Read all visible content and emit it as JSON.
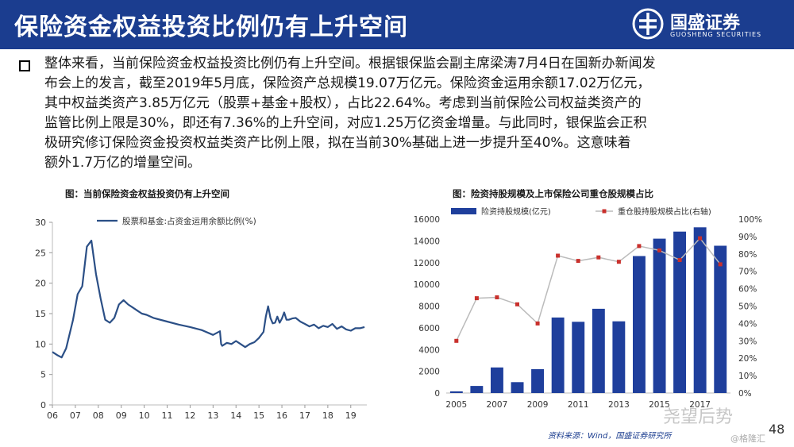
{
  "header": {
    "title": "保险资金权益投资比例仍有上升空间"
  },
  "logo": {
    "name_cn": "国盛证券",
    "name_en": "GUOSHENG SECURITIES"
  },
  "paragraph": {
    "lines": [
      "整体来看，当前保险资金权益投资比例仍有上升空间。根据银保监会副主席梁涛7月4日在国新办新闻发",
      "布会上的发言，截至2019年5月底，保险资产总规模19.07万亿元。保险资金运用余额17.02万亿元，",
      "其中权益类资产3.85万亿元（股票+基金+股权），占比22.64%。考虑到当前保险公司权益类资产的",
      "监管比例上限是30%，即还有7.36%的上升空间，对应1.25万亿资金增量。与此同时，银保监会正积",
      "极研究修订保险资金投资权益类资产比例上限，拟在当前30%基础上进一步提升至40%。这意味着",
      "额外1.7万亿的增量空间。"
    ]
  },
  "chart_left": {
    "title": "图：当前保险资金权益投资仍有上升空间"
  },
  "chart_right": {
    "title": "图：险资持股规模及上市保险公司重仓股规模占比"
  },
  "footer": {
    "source": "资料来源：Wind，国盛证券研究所",
    "watermark": "尧望后势",
    "watermark2": "@格隆汇",
    "page": "48"
  },
  "colors": {
    "header_bg": "#1b3d8f",
    "line_color": "#2b4f86",
    "bar_color": "#1f3f9c",
    "ratio_color": "#c9302c",
    "ratio_line": "#bbbbbb"
  },
  "chart_data": [
    {
      "type": "line",
      "title": "图：当前保险资金权益投资仍有上升空间",
      "xlabel": "",
      "ylabel": "",
      "legend": "top-left",
      "xticks": [
        "06",
        "07",
        "08",
        "09",
        "10",
        "11",
        "12",
        "13",
        "14",
        "15",
        "16",
        "17",
        "18",
        "19"
      ],
      "ylim": [
        0,
        30
      ],
      "yticks": [
        0,
        5,
        10,
        15,
        20,
        25,
        30
      ],
      "series": [
        {
          "name": "股票和基金:占资金运用余额比例(%)",
          "x": [
            2006.0,
            2006.2,
            2006.4,
            2006.6,
            2006.9,
            2007.1,
            2007.3,
            2007.5,
            2007.7,
            2007.9,
            2008.1,
            2008.3,
            2008.5,
            2008.7,
            2008.9,
            2009.1,
            2009.3,
            2009.5,
            2009.7,
            2009.9,
            2010.1,
            2010.4,
            2011.0,
            2011.5,
            2012.0,
            2012.5,
            2013.0,
            2013.3,
            2013.35,
            2013.4,
            2013.6,
            2013.8,
            2014.0,
            2014.2,
            2014.4,
            2014.6,
            2014.8,
            2015.0,
            2015.2,
            2015.3,
            2015.4,
            2015.5,
            2015.6,
            2015.7,
            2015.8,
            2015.9,
            2016.0,
            2016.1,
            2016.2,
            2016.3,
            2016.45,
            2016.6,
            2016.8,
            2017.0,
            2017.2,
            2017.4,
            2017.6,
            2017.8,
            2018.0,
            2018.2,
            2018.4,
            2018.6,
            2018.8,
            2019.0,
            2019.2,
            2019.4,
            2019.6
          ],
          "values": [
            8.7,
            8.2,
            7.8,
            9.3,
            14.0,
            18.2,
            19.5,
            26.0,
            27.0,
            21.5,
            17.5,
            14.0,
            13.5,
            14.3,
            16.5,
            17.2,
            16.5,
            16.0,
            15.5,
            15.0,
            14.8,
            14.3,
            13.7,
            13.2,
            12.8,
            12.3,
            11.5,
            12.1,
            10.0,
            9.7,
            10.2,
            10.0,
            10.5,
            10.0,
            9.5,
            10.0,
            10.3,
            11.0,
            12.0,
            14.5,
            16.2,
            14.3,
            13.4,
            13.5,
            14.5,
            13.5,
            14.2,
            15.2,
            14.0,
            14.0,
            14.2,
            14.3,
            13.7,
            13.3,
            12.9,
            13.2,
            12.6,
            13.0,
            12.8,
            13.3,
            12.5,
            12.9,
            12.4,
            12.2,
            12.6,
            12.6,
            12.8
          ]
        }
      ]
    },
    {
      "type": "bar",
      "title": "图：险资持股规模及上市保险公司重仓股规模占比",
      "legend": "top",
      "categories": [
        "2005",
        "2006",
        "2007",
        "2008",
        "2009",
        "2010",
        "2011",
        "2012",
        "2013",
        "2014",
        "2015",
        "2016",
        "2017",
        "2018"
      ],
      "xtick_labels": [
        "2005",
        "2007",
        "2009",
        "2011",
        "2013",
        "2015",
        "2017"
      ],
      "ylim": [
        0,
        16000
      ],
      "yticks": [
        0,
        2000,
        4000,
        6000,
        8000,
        10000,
        12000,
        14000,
        16000
      ],
      "y2lim": [
        0,
        100
      ],
      "y2ticks": [
        "0%",
        "10%",
        "20%",
        "30%",
        "40%",
        "50%",
        "60%",
        "70%",
        "80%",
        "90%",
        "100%"
      ],
      "series": [
        {
          "name": "险资持股规模(亿元)",
          "type": "bar",
          "axis": "left",
          "values": [
            150,
            650,
            2350,
            1000,
            2200,
            6950,
            6550,
            7750,
            6600,
            12600,
            14200,
            14850,
            15250,
            13550
          ]
        },
        {
          "name": "重仓股持股规模占比(右轴)",
          "type": "line",
          "axis": "right",
          "values": [
            30,
            54.5,
            55,
            51,
            40,
            79,
            76,
            78,
            75.5,
            84.5,
            82,
            76.5,
            89,
            74
          ]
        }
      ]
    }
  ]
}
